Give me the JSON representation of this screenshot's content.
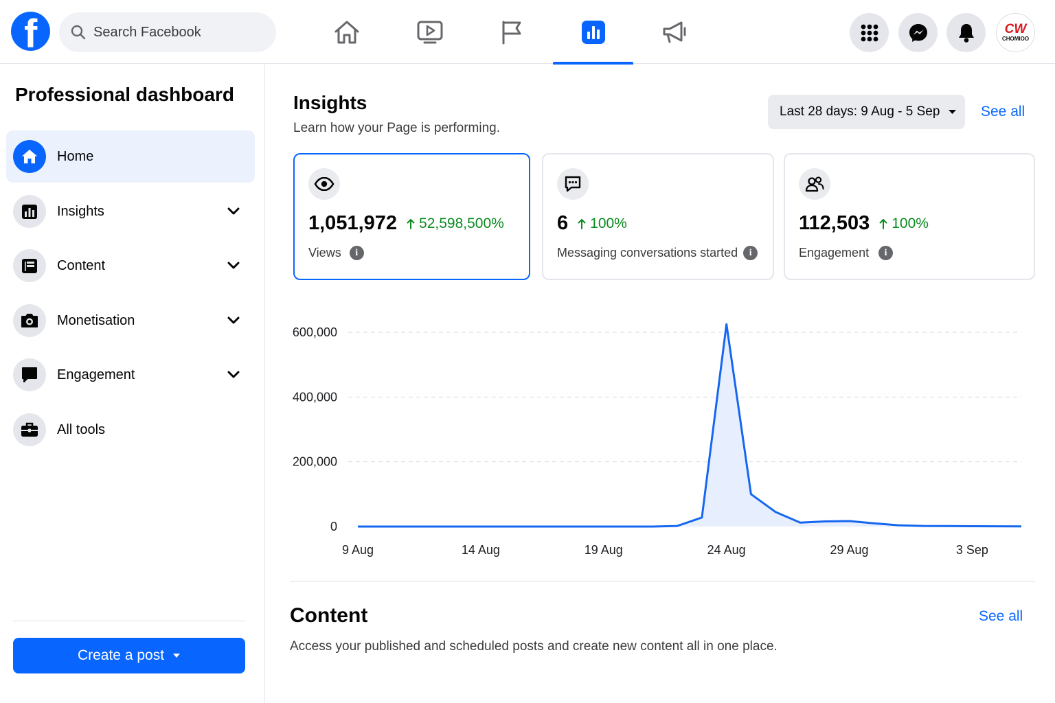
{
  "search": {
    "placeholder": "Search Facebook"
  },
  "topnav": {
    "tabs": [
      {
        "id": "home",
        "icon": "home-icon"
      },
      {
        "id": "watch",
        "icon": "video-icon"
      },
      {
        "id": "pages",
        "icon": "flag-icon"
      },
      {
        "id": "insights",
        "icon": "bar-chart-icon",
        "active": true
      },
      {
        "id": "ads",
        "icon": "megaphone-icon"
      }
    ],
    "profile_logo": {
      "line1": "CW",
      "line2": "CHOMIOO"
    }
  },
  "sidebar": {
    "title": "Professional dashboard",
    "items": [
      {
        "label": "Home",
        "icon": "home-icon",
        "active": true,
        "expandable": false
      },
      {
        "label": "Insights",
        "icon": "insights-icon",
        "expandable": true
      },
      {
        "label": "Content",
        "icon": "content-icon",
        "expandable": true
      },
      {
        "label": "Monetisation",
        "icon": "camera-icon",
        "expandable": true
      },
      {
        "label": "Engagement",
        "icon": "chat-icon",
        "expandable": true
      },
      {
        "label": "All tools",
        "icon": "toolbox-icon",
        "expandable": false
      }
    ],
    "create_post": "Create a post"
  },
  "insights": {
    "title": "Insights",
    "subtitle": "Learn how your Page is performing.",
    "date_range": "Last 28 days: 9 Aug - 5 Sep",
    "see_all": "See all",
    "cards": [
      {
        "value": "1,051,972",
        "delta": "52,598,500%",
        "label": "Views",
        "icon": "eye-icon"
      },
      {
        "value": "6",
        "delta": "100%",
        "label": "Messaging conversations started",
        "icon": "message-icon"
      },
      {
        "value": "112,503",
        "delta": "100%",
        "label": "Engagement",
        "icon": "people-icon"
      }
    ]
  },
  "chart_data": {
    "type": "area",
    "x": [
      "9 Aug",
      "10 Aug",
      "11 Aug",
      "12 Aug",
      "13 Aug",
      "14 Aug",
      "15 Aug",
      "16 Aug",
      "17 Aug",
      "18 Aug",
      "19 Aug",
      "20 Aug",
      "21 Aug",
      "22 Aug",
      "23 Aug",
      "24 Aug",
      "25 Aug",
      "26 Aug",
      "27 Aug",
      "28 Aug",
      "29 Aug",
      "30 Aug",
      "31 Aug",
      "1 Sep",
      "2 Sep",
      "3 Sep",
      "4 Sep",
      "5 Sep"
    ],
    "series": [
      {
        "values": [
          0,
          0,
          0,
          0,
          0,
          0,
          0,
          0,
          0,
          0,
          0,
          0,
          0,
          2000,
          28000,
          625000,
          100000,
          45000,
          12000,
          16000,
          17000,
          10000,
          4000,
          2000,
          1500,
          1000,
          800,
          500
        ]
      }
    ],
    "xticks": [
      "9 Aug",
      "14 Aug",
      "19 Aug",
      "24 Aug",
      "29 Aug",
      "3 Sep"
    ],
    "yticks": [
      "0",
      "200,000",
      "400,000",
      "600,000"
    ],
    "ylim": [
      0,
      600000
    ],
    "grid": true,
    "color": "#1667ef"
  },
  "content": {
    "title": "Content",
    "subtitle": "Access your published and scheduled posts and create new content all in one place.",
    "see_all": "See all"
  },
  "colors": {
    "accent": "#0866ff",
    "positive": "#0a8a1f"
  }
}
